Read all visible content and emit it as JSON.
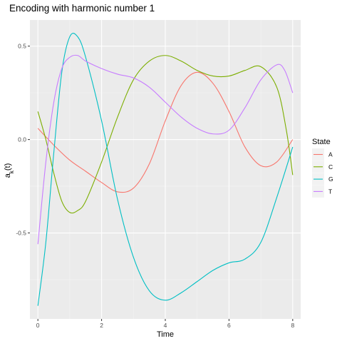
{
  "chart_data": {
    "type": "line",
    "title": "Encoding with harmonic number 1",
    "xlabel": "Time",
    "ylabel_main": "a",
    "ylabel_sub": "k",
    "ylabel_tail": "(t)",
    "xlim": [
      -0.25,
      8.25
    ],
    "ylim": [
      -0.96,
      0.64
    ],
    "x_ticks": [
      0,
      2,
      4,
      6,
      8
    ],
    "x_tick_labels": [
      "0",
      "2",
      "4",
      "6",
      "8"
    ],
    "y_ticks": [
      -0.5,
      0.0,
      0.5
    ],
    "y_tick_labels": [
      "-0.5",
      "0.0",
      "0.5"
    ],
    "grid": true,
    "legend_title": "State",
    "legend_position": "right",
    "series": [
      {
        "name": "A",
        "color": "#F8766D",
        "points": [
          [
            0,
            0.06
          ],
          [
            0.5,
            -0.03
          ],
          [
            1.0,
            -0.11
          ],
          [
            1.5,
            -0.17
          ],
          [
            2.0,
            -0.23
          ],
          [
            2.5,
            -0.28
          ],
          [
            3.0,
            -0.26
          ],
          [
            3.5,
            -0.13
          ],
          [
            4.0,
            0.1
          ],
          [
            4.5,
            0.29
          ],
          [
            5.0,
            0.36
          ],
          [
            5.5,
            0.3
          ],
          [
            6.0,
            0.15
          ],
          [
            6.5,
            -0.04
          ],
          [
            7.0,
            -0.14
          ],
          [
            7.5,
            -0.12
          ],
          [
            8.0,
            0.0
          ]
        ]
      },
      {
        "name": "C",
        "color": "#7CAE00",
        "points": [
          [
            0,
            0.15
          ],
          [
            0.25,
            0.0
          ],
          [
            0.5,
            -0.18
          ],
          [
            0.75,
            -0.33
          ],
          [
            1.0,
            -0.39
          ],
          [
            1.25,
            -0.38
          ],
          [
            1.5,
            -0.33
          ],
          [
            2.0,
            -0.12
          ],
          [
            2.5,
            0.12
          ],
          [
            3.0,
            0.32
          ],
          [
            3.5,
            0.42
          ],
          [
            4.0,
            0.45
          ],
          [
            4.5,
            0.42
          ],
          [
            5.0,
            0.37
          ],
          [
            5.5,
            0.34
          ],
          [
            6.0,
            0.34
          ],
          [
            6.5,
            0.37
          ],
          [
            7.0,
            0.39
          ],
          [
            7.5,
            0.28
          ],
          [
            7.8,
            0.05
          ],
          [
            8.0,
            -0.19
          ]
        ]
      },
      {
        "name": "G",
        "color": "#00BFC4",
        "points": [
          [
            0,
            -0.89
          ],
          [
            0.25,
            -0.55
          ],
          [
            0.5,
            -0.07
          ],
          [
            0.75,
            0.36
          ],
          [
            1.0,
            0.55
          ],
          [
            1.25,
            0.55
          ],
          [
            1.5,
            0.44
          ],
          [
            2.0,
            0.1
          ],
          [
            2.5,
            -0.32
          ],
          [
            3.0,
            -0.63
          ],
          [
            3.5,
            -0.81
          ],
          [
            4.0,
            -0.86
          ],
          [
            4.5,
            -0.82
          ],
          [
            5.0,
            -0.76
          ],
          [
            5.5,
            -0.7
          ],
          [
            6.0,
            -0.66
          ],
          [
            6.5,
            -0.64
          ],
          [
            7.0,
            -0.55
          ],
          [
            7.5,
            -0.31
          ],
          [
            8.0,
            -0.04
          ]
        ]
      },
      {
        "name": "T",
        "color": "#C77CFF",
        "points": [
          [
            0,
            -0.56
          ],
          [
            0.25,
            -0.12
          ],
          [
            0.5,
            0.2
          ],
          [
            0.75,
            0.38
          ],
          [
            1.0,
            0.44
          ],
          [
            1.25,
            0.45
          ],
          [
            1.5,
            0.42
          ],
          [
            2.0,
            0.38
          ],
          [
            2.5,
            0.35
          ],
          [
            3.0,
            0.33
          ],
          [
            3.5,
            0.28
          ],
          [
            4.0,
            0.2
          ],
          [
            4.5,
            0.12
          ],
          [
            5.0,
            0.06
          ],
          [
            5.5,
            0.03
          ],
          [
            6.0,
            0.05
          ],
          [
            6.5,
            0.17
          ],
          [
            7.0,
            0.32
          ],
          [
            7.5,
            0.4
          ],
          [
            7.75,
            0.37
          ],
          [
            8.0,
            0.25
          ]
        ]
      }
    ]
  }
}
